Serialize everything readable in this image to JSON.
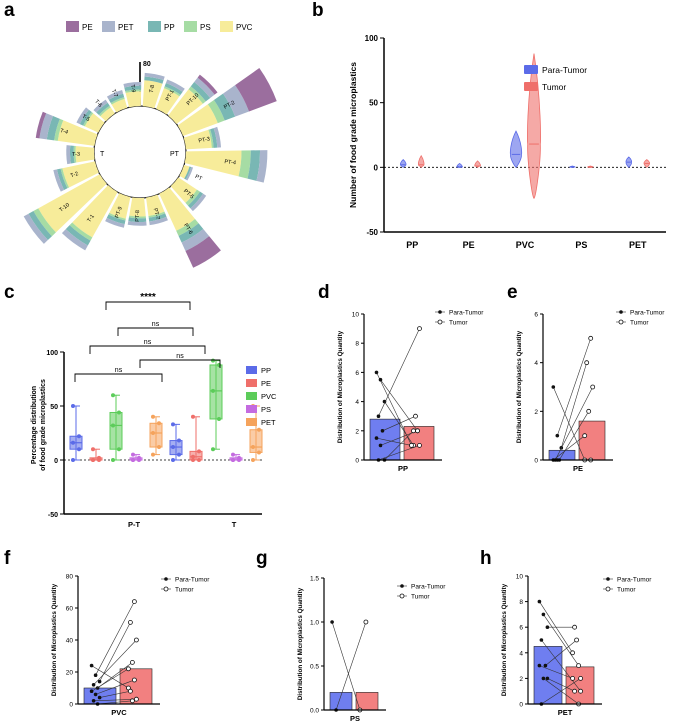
{
  "panel_labels": {
    "a": "a",
    "b": "b",
    "c": "c",
    "d": "d",
    "e": "e",
    "f": "f",
    "g": "g",
    "h": "h"
  },
  "colors": {
    "PE": "#9b6e9e",
    "PET": "#a9b4cc",
    "PP": "#79b7b4",
    "PS": "#a6dca4",
    "PVC": "#f7ec9a",
    "blue": "#5b6be8",
    "red": "#ef6f6a",
    "green": "#5ccc5a",
    "purple": "#c46be0",
    "orange": "#f5a35c",
    "barBlue": "#6f7ef0",
    "barRed": "#f28080"
  },
  "chart_data": [
    {
      "id": "a",
      "type": "radial-stacked-bar",
      "legend": [
        "PE",
        "PET",
        "PP",
        "PS",
        "PVC"
      ],
      "scale_label": "80",
      "center_left": "T",
      "center_right": "PT",
      "bars": [
        {
          "label": "T-8",
          "PVC": 14,
          "PS": 0,
          "PP": 2,
          "PET": 2,
          "PE": 0
        },
        {
          "label": "PT-1",
          "PVC": 12,
          "PS": 1,
          "PP": 2,
          "PET": 2,
          "PE": 0
        },
        {
          "label": "PT-10",
          "PVC": 18,
          "PS": 2,
          "PP": 3,
          "PET": 3,
          "PE": 2
        },
        {
          "label": "PT-2",
          "PVC": 20,
          "PS": 4,
          "PP": 6,
          "PET": 8,
          "PE": 16
        },
        {
          "label": "PT-3",
          "PVC": 14,
          "PS": 1,
          "PP": 2,
          "PET": 2,
          "PE": 0
        },
        {
          "label": "PT-4",
          "PVC": 30,
          "PS": 5,
          "PP": 5,
          "PET": 4,
          "PE": 0
        },
        {
          "label": "PT",
          "PVC": 3,
          "PS": 0,
          "PP": 1,
          "PET": 1,
          "PE": 0
        },
        {
          "label": "PT-5",
          "PVC": 12,
          "PS": 2,
          "PP": 2,
          "PET": 2,
          "PE": 0
        },
        {
          "label": "PT-6",
          "PVC": 22,
          "PS": 3,
          "PP": 4,
          "PET": 5,
          "PE": 10
        },
        {
          "label": "PT-7",
          "PVC": 10,
          "PS": 1,
          "PP": 2,
          "PET": 2,
          "PE": 0
        },
        {
          "label": "PT-8",
          "PVC": 10,
          "PS": 1,
          "PP": 2,
          "PET": 2,
          "PE": 0
        },
        {
          "label": "PT-9",
          "PVC": 12,
          "PS": 1,
          "PP": 2,
          "PET": 2,
          "PE": 0
        },
        {
          "label": "T-1",
          "PVC": 28,
          "PS": 2,
          "PP": 3,
          "PET": 3,
          "PE": 0
        },
        {
          "label": "T-10",
          "PVC": 38,
          "PS": 3,
          "PP": 3,
          "PET": 3,
          "PE": 0
        },
        {
          "label": "T-2",
          "PVC": 18,
          "PS": 1,
          "PP": 2,
          "PET": 2,
          "PE": 0
        },
        {
          "label": "T-3",
          "PVC": 10,
          "PS": 1,
          "PP": 2,
          "PET": 2,
          "PE": 0
        },
        {
          "label": "T-4",
          "PVC": 20,
          "PS": 2,
          "PP": 4,
          "PET": 4,
          "PE": 2
        },
        {
          "label": "T-5",
          "PVC": 8,
          "PS": 1,
          "PP": 2,
          "PET": 2,
          "PE": 0
        },
        {
          "label": "T-6",
          "PVC": 4,
          "PS": 1,
          "PP": 2,
          "PET": 2,
          "PE": 0
        },
        {
          "label": "T-7",
          "PVC": 5,
          "PS": 1,
          "PP": 2,
          "PET": 2,
          "PE": 0
        },
        {
          "label": "T-9",
          "PVC": 8,
          "PS": 1,
          "PP": 2,
          "PET": 2,
          "PE": 0
        }
      ]
    },
    {
      "id": "b",
      "type": "violin",
      "ylabel": "Number of food grade microplastics",
      "ylim": [
        -50,
        100
      ],
      "yticks": [
        "-50",
        "0",
        "50",
        "100"
      ],
      "categories": [
        "PP",
        "PE",
        "PVC",
        "PS",
        "PET"
      ],
      "legend": [
        "Para-Tumor",
        "Tumor"
      ],
      "series": [
        {
          "name": "Para-Tumor",
          "median": [
            2,
            0,
            10,
            0,
            4
          ],
          "min": [
            0,
            0,
            0,
            0,
            0
          ],
          "max": [
            6,
            3,
            28,
            1,
            8
          ]
        },
        {
          "name": "Tumor",
          "median": [
            2,
            1,
            18,
            0,
            3
          ],
          "min": [
            0,
            0,
            -24,
            0,
            0
          ],
          "max": [
            9,
            5,
            88,
            1,
            6
          ]
        }
      ]
    },
    {
      "id": "c",
      "type": "box",
      "ylabel": "Percentage distribution\nof food grade microplastics",
      "ylim": [
        -50,
        100
      ],
      "yticks": [
        "-50",
        "0",
        "50",
        "100"
      ],
      "groups": [
        "P-T",
        "T"
      ],
      "legend": [
        "PP",
        "PE",
        "PVC",
        "PS",
        "PET"
      ],
      "boxes": {
        "P-T": [
          {
            "q1": 10,
            "med": 16,
            "q3": 22,
            "min": 0,
            "max": 50
          },
          {
            "q1": 0,
            "med": 0,
            "q3": 2,
            "min": 0,
            "max": 10
          },
          {
            "q1": 10,
            "med": 32,
            "q3": 44,
            "min": 0,
            "max": 60
          },
          {
            "q1": 0,
            "med": 0,
            "q3": 2,
            "min": 0,
            "max": 5
          },
          {
            "q1": 12,
            "med": 25,
            "q3": 34,
            "min": 5,
            "max": 40
          }
        ],
        "T": [
          {
            "q1": 5,
            "med": 12,
            "q3": 18,
            "min": 0,
            "max": 33
          },
          {
            "q1": 0,
            "med": 3,
            "q3": 8,
            "min": 0,
            "max": 40
          },
          {
            "q1": 38,
            "med": 64,
            "q3": 88,
            "min": 10,
            "max": 92
          },
          {
            "q1": 0,
            "med": 0,
            "q3": 2,
            "min": 0,
            "max": 5
          },
          {
            "q1": 7,
            "med": 12,
            "q3": 28,
            "min": 0,
            "max": 50
          }
        ]
      },
      "annotations": [
        "****",
        "ns",
        "ns",
        "ns",
        "ns"
      ]
    },
    {
      "id": "d",
      "type": "paired-bar",
      "xlabel": "PP",
      "ylabel": "Distribution of Microplastics Quantity",
      "ylim": [
        0,
        10
      ],
      "yticks": [
        "0",
        "2",
        "4",
        "6",
        "8",
        "10"
      ],
      "legend": [
        "Para-Tumor",
        "Tumor"
      ],
      "means": [
        2.8,
        2.3
      ],
      "pairs": [
        [
          6,
          1
        ],
        [
          5.5,
          2
        ],
        [
          4,
          1
        ],
        [
          3,
          9
        ],
        [
          2,
          3
        ],
        [
          1.5,
          1
        ],
        [
          1,
          2
        ],
        [
          0,
          2
        ],
        [
          0,
          1
        ]
      ]
    },
    {
      "id": "e",
      "type": "paired-bar",
      "xlabel": "PE",
      "ylabel": "Distribution of Microplastics Quantity",
      "ylim": [
        0,
        6
      ],
      "yticks": [
        "0",
        "2",
        "4",
        "6"
      ],
      "legend": [
        "Para-Tumor",
        "Tumor"
      ],
      "means": [
        0.4,
        1.6
      ],
      "pairs": [
        [
          3,
          0
        ],
        [
          1,
          5
        ],
        [
          0.5,
          4
        ],
        [
          0,
          3
        ],
        [
          0,
          2
        ],
        [
          0,
          1
        ],
        [
          0,
          0
        ]
      ]
    },
    {
      "id": "f",
      "type": "paired-bar",
      "xlabel": "PVC",
      "ylabel": "Distribution of Microplastics Quantity",
      "ylim": [
        0,
        80
      ],
      "yticks": [
        "0",
        "20",
        "40",
        "60",
        "80"
      ],
      "legend": [
        "Para-Tumor",
        "Tumor"
      ],
      "means": [
        10,
        22
      ],
      "pairs": [
        [
          24,
          10
        ],
        [
          18,
          64
        ],
        [
          14,
          51
        ],
        [
          12,
          40
        ],
        [
          10,
          26
        ],
        [
          8,
          22
        ],
        [
          6,
          15
        ],
        [
          4,
          8
        ],
        [
          2,
          3
        ],
        [
          0,
          2
        ]
      ]
    },
    {
      "id": "g",
      "type": "paired-bar",
      "xlabel": "PS",
      "ylabel": "Distribution of Microplastics Quantity",
      "ylim": [
        0,
        1.5
      ],
      "yticks": [
        "0.0",
        "0.5",
        "1.0",
        "1.5"
      ],
      "legend": [
        "Para-Tumor",
        "Tumor"
      ],
      "means": [
        0.2,
        0.2
      ],
      "pairs": [
        [
          1,
          0
        ],
        [
          0,
          1
        ]
      ]
    },
    {
      "id": "h",
      "type": "paired-bar",
      "xlabel": "PET",
      "ylabel": "Distribution of Microplastics Quantity",
      "ylim": [
        0,
        10
      ],
      "yticks": [
        "0",
        "2",
        "4",
        "6",
        "8",
        "10"
      ],
      "legend": [
        "Para-Tumor",
        "Tumor"
      ],
      "means": [
        4.5,
        2.9
      ],
      "pairs": [
        [
          8,
          4
        ],
        [
          7,
          3
        ],
        [
          6,
          6
        ],
        [
          5,
          1
        ],
        [
          3,
          5
        ],
        [
          3,
          2
        ],
        [
          2,
          0
        ],
        [
          2,
          1
        ],
        [
          0,
          2
        ]
      ]
    }
  ]
}
